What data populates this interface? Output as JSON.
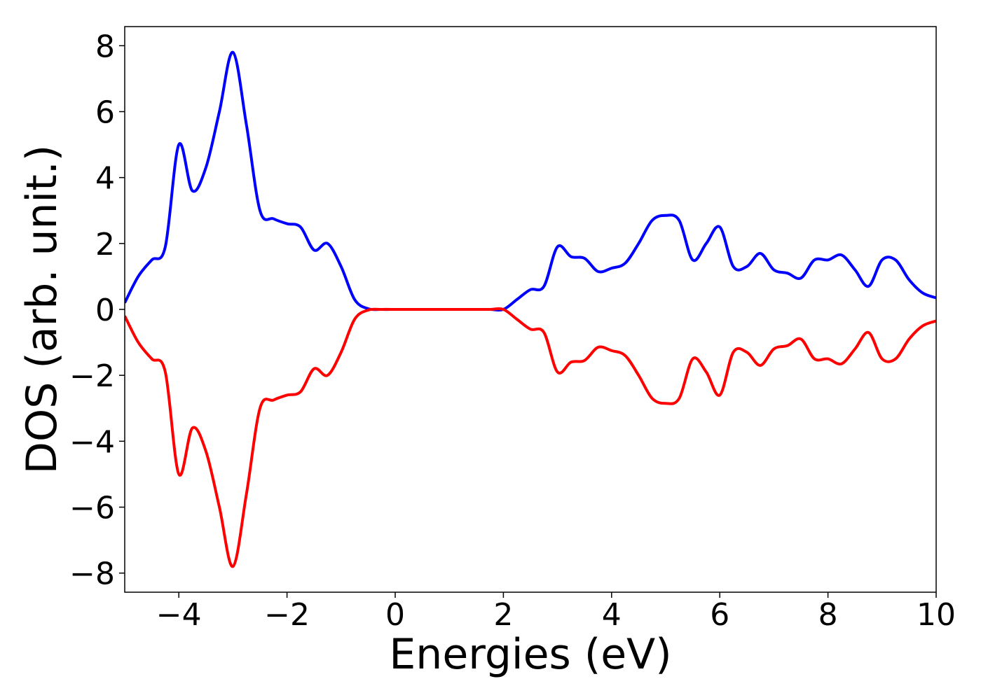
{
  "chart_data": {
    "type": "line",
    "xlabel": "Energies (eV)",
    "ylabel": "DOS (arb. unit.)",
    "x": [
      -5,
      -4.75,
      -4.5,
      -4.25,
      -4,
      -3.75,
      -3.5,
      -3.25,
      -3,
      -2.75,
      -2.5,
      -2.25,
      -2,
      -1.75,
      -1.5,
      -1.25,
      -1,
      -0.75,
      -0.5,
      -0.25,
      0,
      0.25,
      0.5,
      0.75,
      1,
      1.25,
      1.5,
      1.75,
      2,
      2.25,
      2.5,
      2.75,
      3,
      3.25,
      3.5,
      3.75,
      4,
      4.25,
      4.5,
      4.75,
      5,
      5.25,
      5.5,
      5.75,
      6,
      6.25,
      6.5,
      6.75,
      7,
      7.25,
      7.5,
      7.75,
      8,
      8.25,
      8.5,
      8.75,
      9,
      9.25,
      9.5,
      9.75,
      10
    ],
    "series": [
      {
        "color": "#0000ff",
        "values": [
          0.2,
          1.0,
          1.5,
          1.9,
          5.0,
          3.6,
          4.3,
          6.0,
          7.8,
          5.6,
          3.0,
          2.75,
          2.6,
          2.5,
          1.8,
          2.0,
          1.3,
          0.3,
          0.02,
          0,
          0,
          0,
          0,
          0,
          0,
          0,
          0,
          0,
          0,
          0.3,
          0.6,
          0.7,
          1.9,
          1.6,
          1.55,
          1.15,
          1.25,
          1.4,
          2.0,
          2.7,
          2.85,
          2.7,
          1.5,
          2.0,
          2.5,
          1.3,
          1.3,
          1.7,
          1.2,
          1.1,
          0.95,
          1.5,
          1.5,
          1.65,
          1.2,
          0.7,
          1.5,
          1.5,
          0.9,
          0.5,
          0.35
        ]
      },
      {
        "color": "#ff0000",
        "values": [
          -0.2,
          -1.0,
          -1.5,
          -1.9,
          -5.0,
          -3.6,
          -4.3,
          -6.0,
          -7.8,
          -5.6,
          -3.0,
          -2.75,
          -2.6,
          -2.5,
          -1.8,
          -2.0,
          -1.3,
          -0.3,
          -0.02,
          0,
          0,
          0,
          0,
          0,
          0,
          0,
          0,
          0,
          0,
          -0.3,
          -0.6,
          -0.7,
          -1.9,
          -1.6,
          -1.55,
          -1.15,
          -1.25,
          -1.4,
          -2.0,
          -2.7,
          -2.85,
          -2.7,
          -1.5,
          -1.9,
          -2.6,
          -1.3,
          -1.3,
          -1.7,
          -1.2,
          -1.1,
          -0.9,
          -1.5,
          -1.5,
          -1.65,
          -1.2,
          -0.7,
          -1.5,
          -1.5,
          -0.9,
          -0.5,
          -0.35
        ]
      }
    ],
    "xlim": [
      -5,
      10
    ],
    "xticks": [
      {
        "value": -4,
        "label": "−4"
      },
      {
        "value": -2,
        "label": "−2"
      },
      0,
      2,
      4,
      6,
      8,
      10
    ],
    "ylim": [
      -8.58,
      8.58
    ],
    "yticks": [
      {
        "value": -8,
        "label": "−8"
      },
      {
        "value": -6,
        "label": "−6"
      },
      {
        "value": -4,
        "label": "−4"
      },
      {
        "value": -2,
        "label": "−2"
      },
      0,
      2,
      4,
      6,
      8
    ]
  }
}
